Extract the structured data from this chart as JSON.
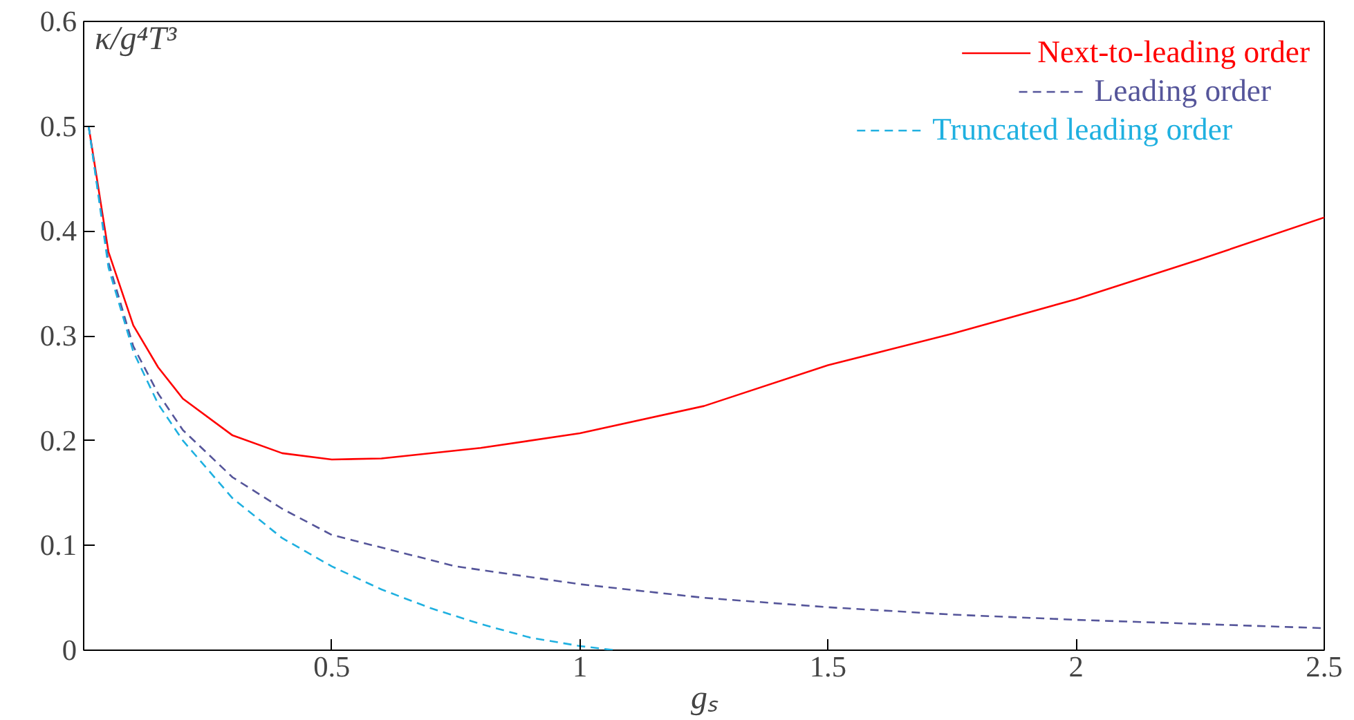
{
  "chart_data": {
    "type": "line",
    "xlabel": "gₛ",
    "ylabel": "κ/g⁴T³",
    "xlim": [
      0,
      2.5
    ],
    "ylim": [
      0,
      0.6
    ],
    "xticks": [
      0.5,
      1,
      1.5,
      2,
      2.5
    ],
    "yticks": [
      0,
      0.1,
      0.2,
      0.3,
      0.4,
      0.5,
      0.6
    ],
    "grid": false,
    "legend": "top right",
    "marker": "none",
    "series": [
      {
        "name": "Next-to-leading order",
        "color": "#ff0000",
        "line_style": "solid",
        "x": [
          0.01,
          0.05,
          0.1,
          0.15,
          0.2,
          0.3,
          0.4,
          0.5,
          0.6,
          0.8,
          1.0,
          1.25,
          1.5,
          1.75,
          2.0,
          2.25,
          2.5
        ],
        "values": [
          0.5,
          0.38,
          0.31,
          0.27,
          0.24,
          0.205,
          0.188,
          0.182,
          0.183,
          0.193,
          0.207,
          0.233,
          0.272,
          0.302,
          0.335,
          0.373,
          0.413
        ]
      },
      {
        "name": "Leading order",
        "color": "#55559a",
        "line_style": "dashed",
        "x": [
          0.01,
          0.05,
          0.1,
          0.15,
          0.2,
          0.3,
          0.4,
          0.5,
          0.75,
          1.0,
          1.25,
          1.5,
          1.75,
          2.0,
          2.25,
          2.5
        ],
        "values": [
          0.5,
          0.37,
          0.29,
          0.245,
          0.21,
          0.165,
          0.135,
          0.11,
          0.08,
          0.063,
          0.05,
          0.041,
          0.034,
          0.029,
          0.025,
          0.021
        ]
      },
      {
        "name": "Truncated leading order",
        "color": "#1fb0e0",
        "line_style": "dashed",
        "x": [
          0.01,
          0.05,
          0.1,
          0.15,
          0.2,
          0.3,
          0.4,
          0.5,
          0.6,
          0.7,
          0.8,
          0.9,
          1.0,
          1.07
        ],
        "values": [
          0.5,
          0.365,
          0.285,
          0.235,
          0.2,
          0.145,
          0.107,
          0.08,
          0.058,
          0.04,
          0.025,
          0.012,
          0.004,
          0
        ]
      }
    ]
  }
}
